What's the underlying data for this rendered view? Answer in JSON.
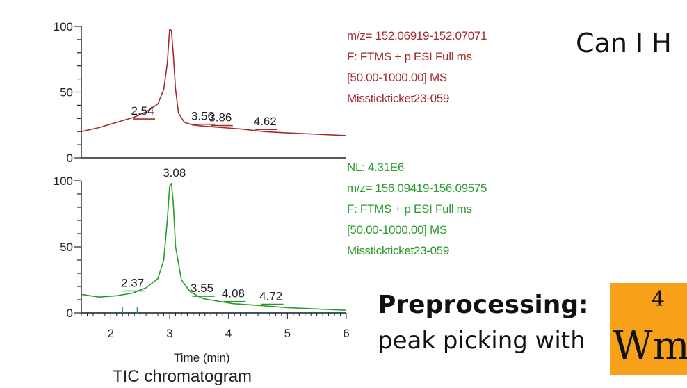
{
  "chart_data": [
    {
      "type": "line",
      "color": "#a32b2b",
      "xlim": [
        1.5,
        6.0
      ],
      "ylim": [
        0,
        100
      ],
      "y_ticks": [
        "0",
        "50",
        "100"
      ],
      "x_tick_labels_visible": false,
      "series": [
        {
          "x": [
            1.5,
            1.8,
            2.1,
            2.4,
            2.6,
            2.8,
            2.9,
            2.96,
            3.0,
            3.03,
            3.06,
            3.1,
            3.15,
            3.25,
            3.4,
            3.6,
            3.9,
            4.2,
            4.6,
            5.0,
            5.5,
            6.0
          ],
          "y": [
            20,
            23,
            27,
            31,
            35,
            41,
            52,
            72,
            98,
            97,
            80,
            52,
            34,
            27,
            25,
            24,
            23,
            22,
            20,
            19,
            18,
            17
          ]
        }
      ],
      "peak_labels": [
        {
          "text": "2.54",
          "x": 2.54,
          "y": 28
        },
        {
          "text": "3.56",
          "x": 3.56,
          "y": 24
        },
        {
          "text": "3.86",
          "x": 3.86,
          "y": 23
        },
        {
          "text": "4.62",
          "x": 4.62,
          "y": 20
        }
      ],
      "info_lines": [
        "m/z= 152.06919-152.07071",
        "F: FTMS + p ESI Full ms",
        "[50.00-1000.00]  MS",
        "Misstickticket23-059"
      ]
    },
    {
      "type": "line",
      "color": "#2a9a2a",
      "xlim": [
        1.5,
        6.0
      ],
      "ylim": [
        0,
        100
      ],
      "y_ticks": [
        "0",
        "50",
        "100"
      ],
      "x_ticks": [
        "2",
        "3",
        "4",
        "5",
        "6"
      ],
      "x_tick_values": [
        2,
        3,
        4,
        5,
        6
      ],
      "xlabel": "Time (min)",
      "series": [
        {
          "x": [
            1.5,
            1.8,
            2.1,
            2.37,
            2.6,
            2.8,
            2.9,
            2.96,
            3.0,
            3.03,
            3.06,
            3.1,
            3.2,
            3.35,
            3.55,
            3.8,
            4.08,
            4.4,
            4.72,
            5.0,
            5.5,
            6.0
          ],
          "y": [
            14,
            12,
            13,
            15,
            19,
            26,
            40,
            70,
            96,
            98,
            84,
            50,
            25,
            16,
            11,
            9,
            7,
            6,
            5,
            4,
            3,
            2
          ]
        }
      ],
      "peak_labels": [
        {
          "text": "3.08",
          "x": 3.08,
          "y": 100,
          "above": true
        },
        {
          "text": "2.37",
          "x": 2.37,
          "y": 15
        },
        {
          "text": "3.55",
          "x": 3.55,
          "y": 11
        },
        {
          "text": "4.08",
          "x": 4.08,
          "y": 7
        },
        {
          "text": "4.72",
          "x": 4.72,
          "y": 5
        }
      ],
      "info_lines": [
        "NL: 4.31E6",
        "m/z= 156.09419-156.09575",
        "F: FTMS + p ESI Full ms",
        "[50.00-1000.00]  MS",
        "Misstickticket23-059"
      ]
    }
  ],
  "caption": "TIC chromatogram",
  "slide": {
    "headline": "Can I H",
    "preprocessing_title": "Preprocessing:",
    "preprocessing_sub": "peak picking with",
    "badge_number": "4",
    "badge_letters": "Wm"
  },
  "colors": {
    "red_trace": "#a32b2b",
    "green_trace": "#2a9a2a",
    "badge": "#f7a11a",
    "baseline_marks": "#2c8fa6"
  }
}
